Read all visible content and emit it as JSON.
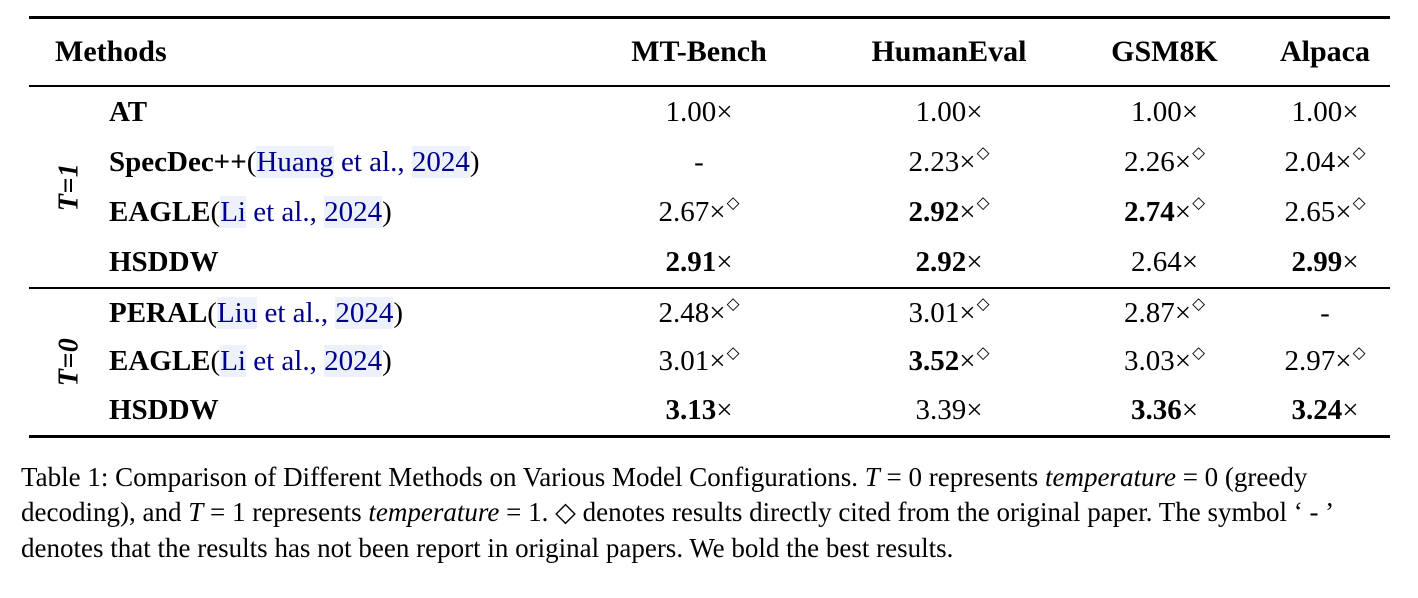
{
  "table": {
    "headers": [
      "Methods",
      "MT-Bench",
      "HumanEval",
      "GSM8K",
      "Alpaca"
    ],
    "multiply_symbol": "×",
    "diamond_symbol": "◇",
    "dash_symbol": "-",
    "groups": [
      {
        "label": "T=1",
        "rows": [
          {
            "method": {
              "name": "AT"
            },
            "cells": [
              {
                "v": "1.00",
                "bold": false,
                "sup": false
              },
              {
                "v": "1.00",
                "bold": false,
                "sup": false
              },
              {
                "v": "1.00",
                "bold": false,
                "sup": false
              },
              {
                "v": "1.00",
                "bold": false,
                "sup": false
              }
            ]
          },
          {
            "method": {
              "name": "SpecDec++",
              "cite_author": "Huang",
              "cite_mid": " et al., ",
              "cite_year": "2024"
            },
            "cells": [
              {
                "dash": true
              },
              {
                "v": "2.23",
                "bold": false,
                "sup": true
              },
              {
                "v": "2.26",
                "bold": false,
                "sup": true
              },
              {
                "v": "2.04",
                "bold": false,
                "sup": true
              }
            ]
          },
          {
            "method": {
              "name": "EAGLE",
              "cite_author": "Li",
              "cite_mid": " et al., ",
              "cite_year": "2024"
            },
            "cells": [
              {
                "v": "2.67",
                "bold": false,
                "sup": true
              },
              {
                "v": "2.92",
                "bold": true,
                "sup": true
              },
              {
                "v": "2.74",
                "bold": true,
                "sup": true
              },
              {
                "v": "2.65",
                "bold": false,
                "sup": true
              }
            ]
          },
          {
            "method": {
              "name": "HSDDW"
            },
            "cells": [
              {
                "v": "2.91",
                "bold": true,
                "sup": false
              },
              {
                "v": "2.92",
                "bold": true,
                "sup": false
              },
              {
                "v": "2.64",
                "bold": false,
                "sup": false
              },
              {
                "v": "2.99",
                "bold": true,
                "sup": false
              }
            ]
          }
        ]
      },
      {
        "label": "T=0",
        "rows": [
          {
            "method": {
              "name": "PERAL",
              "cite_author": "Liu",
              "cite_mid": " et al., ",
              "cite_year": "2024"
            },
            "cells": [
              {
                "v": "2.48",
                "bold": false,
                "sup": true
              },
              {
                "v": "3.01",
                "bold": false,
                "sup": true
              },
              {
                "v": "2.87",
                "bold": false,
                "sup": true
              },
              {
                "dash": true
              }
            ]
          },
          {
            "method": {
              "name": "EAGLE",
              "cite_author": "Li",
              "cite_mid": " et al., ",
              "cite_year": "2024"
            },
            "cells": [
              {
                "v": "3.01",
                "bold": false,
                "sup": true
              },
              {
                "v": "3.52",
                "bold": true,
                "sup": true
              },
              {
                "v": "3.03",
                "bold": false,
                "sup": true
              },
              {
                "v": "2.97",
                "bold": false,
                "sup": true
              }
            ]
          },
          {
            "method": {
              "name": "HSDDW"
            },
            "cells": [
              {
                "v": "3.13",
                "bold": true,
                "sup": false
              },
              {
                "v": "3.39",
                "bold": false,
                "sup": false
              },
              {
                "v": "3.36",
                "bold": true,
                "sup": false
              },
              {
                "v": "3.24",
                "bold": true,
                "sup": false
              }
            ]
          }
        ]
      }
    ]
  },
  "caption": {
    "parts": [
      {
        "text": "Table 1: Comparison of Different Methods on Various Model Configurations. ",
        "italic": false
      },
      {
        "text": "T",
        "italic": true
      },
      {
        "text": " = 0 represents ",
        "italic": false
      },
      {
        "text": "temperature",
        "italic": true
      },
      {
        "text": " = 0 (greedy decoding), and ",
        "italic": false
      },
      {
        "text": "T",
        "italic": true
      },
      {
        "text": " = 1 represents ",
        "italic": false
      },
      {
        "text": "temperature",
        "italic": true
      },
      {
        "text": " = 1. ◇ denotes results directly cited from the original paper. The symbol ‘ - ’ denotes that the results has not been report in original papers. We bold the best results.",
        "italic": false
      }
    ]
  },
  "colors": {
    "link": "#00008B",
    "link_highlight": "#edf1fb",
    "text": "#000000"
  }
}
